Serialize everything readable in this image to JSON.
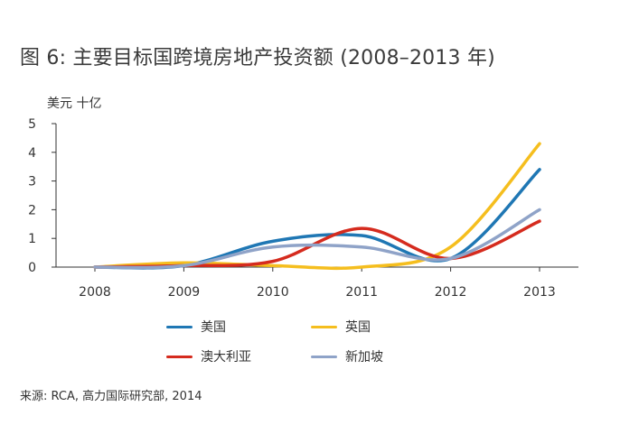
{
  "title": "图 6: 主要目标国跨境房地产投资额 (2008–2013 年)",
  "unit_label": "美元 十亿",
  "source": "来源: RCA, 高力国际研究部, 2014",
  "colors": {
    "us": "#1f77b4",
    "uk": "#f5be1e",
    "australia": "#d52b1e",
    "singapore": "#8fa3c8",
    "axis": "#333333"
  },
  "chart_data": {
    "type": "line",
    "title": "主要目标国跨境房地产投资额 (2008–2013 年)",
    "ylabel": "美元 十亿",
    "xlabel": "",
    "categories": [
      "2008",
      "2009",
      "2010",
      "2011",
      "2012",
      "2013"
    ],
    "yticks": [
      "0",
      "1",
      "2",
      "3",
      "4",
      "5"
    ],
    "ylim": [
      0,
      5
    ],
    "grid": false,
    "legend_position": "bottom",
    "series": [
      {
        "name": "美国",
        "key": "us",
        "values": [
          0.0,
          0.05,
          0.9,
          1.1,
          0.3,
          3.4
        ]
      },
      {
        "name": "英国",
        "key": "uk",
        "values": [
          0.0,
          0.15,
          0.05,
          0.0,
          0.7,
          4.3
        ]
      },
      {
        "name": "澳大利亚",
        "key": "australia",
        "values": [
          0.0,
          0.05,
          0.2,
          1.35,
          0.3,
          1.6
        ]
      },
      {
        "name": "新加坡",
        "key": "singapore",
        "values": [
          0.0,
          0.05,
          0.7,
          0.7,
          0.3,
          2.0
        ]
      }
    ]
  }
}
